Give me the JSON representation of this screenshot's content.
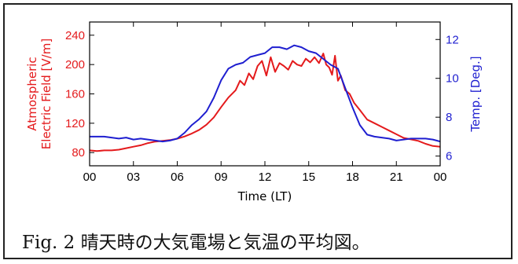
{
  "caption": "Fig. 2 晴天時の大気電場と気温の平均図。",
  "chart_data": {
    "type": "line",
    "xlabel": "Time (LT)",
    "ylabel_left": "Atmospheric Electric Field [V/m]",
    "ylabel_left_lines": [
      "Atmospheric",
      "Electric Field [V/m]"
    ],
    "ylabel_right": "Temp. [Deg.]",
    "x_ticks": [
      "00",
      "03",
      "06",
      "09",
      "12",
      "15",
      "18",
      "21",
      "00"
    ],
    "x_tick_values": [
      0,
      3,
      6,
      9,
      12,
      15,
      18,
      21,
      24
    ],
    "xlim": [
      0,
      24
    ],
    "y_left_ticks": [
      80,
      120,
      160,
      200,
      240
    ],
    "ylim_left": [
      62,
      258
    ],
    "y_right_ticks": [
      6,
      8,
      10,
      12
    ],
    "ylim_right": [
      5.5,
      12.9
    ],
    "grid": false,
    "colors": {
      "electric_field": "#e41a1c",
      "temperature": "#1f1fd0"
    },
    "series": [
      {
        "axis": "left",
        "x": [
          0,
          0.5,
          1,
          1.5,
          2,
          2.5,
          3,
          3.5,
          4,
          4.5,
          5,
          5.5,
          6,
          6.5,
          7,
          7.5,
          8,
          8.5,
          9,
          9.5,
          10,
          10.3,
          10.6,
          10.9,
          11.2,
          11.5,
          11.8,
          12.1,
          12.4,
          12.7,
          13,
          13.3,
          13.6,
          13.9,
          14.2,
          14.5,
          14.8,
          15.1,
          15.4,
          15.7,
          16,
          16.2,
          16.4,
          16.6,
          16.8,
          17,
          17.2,
          17.5,
          17.8,
          18.1,
          18.5,
          19,
          19.5,
          20,
          20.5,
          21,
          21.5,
          22,
          22.5,
          23,
          23.5,
          24
        ],
        "values": [
          83,
          82,
          83,
          83,
          84,
          86,
          88,
          90,
          93,
          95,
          96,
          97,
          99,
          102,
          106,
          111,
          118,
          128,
          142,
          155,
          165,
          178,
          172,
          188,
          180,
          198,
          205,
          185,
          210,
          190,
          202,
          198,
          193,
          205,
          200,
          198,
          208,
          203,
          210,
          202,
          215,
          200,
          196,
          186,
          212,
          178,
          185,
          165,
          160,
          148,
          138,
          125,
          120,
          115,
          110,
          105,
          100,
          98,
          96,
          92,
          89,
          88
        ]
      },
      {
        "axis": "right",
        "x": [
          0,
          0.5,
          1,
          1.5,
          2,
          2.5,
          3,
          3.5,
          4,
          4.5,
          5,
          5.5,
          6,
          6.5,
          7,
          7.5,
          8,
          8.5,
          9,
          9.5,
          10,
          10.5,
          11,
          11.5,
          12,
          12.5,
          13,
          13.5,
          14,
          14.5,
          15,
          15.5,
          16,
          16.5,
          17,
          17.5,
          18,
          18.5,
          19,
          19.5,
          20,
          20.5,
          21,
          21.5,
          22,
          22.5,
          23,
          23.5,
          24
        ],
        "values": [
          7.0,
          7.0,
          7.0,
          6.95,
          6.9,
          6.95,
          6.85,
          6.9,
          6.85,
          6.8,
          6.75,
          6.8,
          6.9,
          7.2,
          7.6,
          7.9,
          8.3,
          9.0,
          9.9,
          10.5,
          10.7,
          10.8,
          11.1,
          11.2,
          11.3,
          11.6,
          11.6,
          11.5,
          11.7,
          11.6,
          11.4,
          11.3,
          11.0,
          10.7,
          10.5,
          9.5,
          8.5,
          7.6,
          7.1,
          7.0,
          6.95,
          6.9,
          6.8,
          6.85,
          6.9,
          6.9,
          6.9,
          6.85,
          6.75
        ]
      }
    ]
  }
}
